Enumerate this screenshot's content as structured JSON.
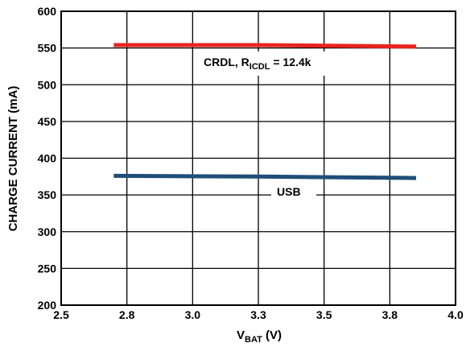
{
  "chart_data": {
    "type": "line",
    "xlabel": {
      "main": "V",
      "sub": "BAT",
      "suffix": " (V)"
    },
    "ylabel": "CHARGE CURRENT (mA)",
    "xlim": [
      2.5,
      4.0
    ],
    "ylim": [
      200,
      600
    ],
    "x_ticks": [
      2.5,
      2.75,
      3.0,
      3.25,
      3.5,
      3.75,
      4.0
    ],
    "x_tick_labels": [
      "2.5",
      "2.8",
      "3.0",
      "3.3",
      "3.5",
      "3.8",
      "4.0"
    ],
    "y_ticks": [
      200,
      250,
      300,
      350,
      400,
      450,
      500,
      550,
      600
    ],
    "y_tick_labels": [
      "200",
      "250",
      "300",
      "350",
      "400",
      "450",
      "500",
      "550",
      "600"
    ],
    "grid": true,
    "series": [
      {
        "name": "CRDL, RICDL = 12.4k",
        "color": "#e8241f",
        "x": [
          2.7,
          3.25,
          3.85
        ],
        "y": [
          554,
          554,
          552
        ]
      },
      {
        "name": "USB",
        "color": "#1f4e79",
        "x": [
          2.7,
          3.25,
          3.85
        ],
        "y": [
          376,
          375,
          373
        ]
      }
    ],
    "annotations": {
      "crdl": {
        "main": "CRDL, R",
        "sub": "ICDL",
        "suffix": " = 12.4k"
      },
      "usb": "USB"
    }
  }
}
